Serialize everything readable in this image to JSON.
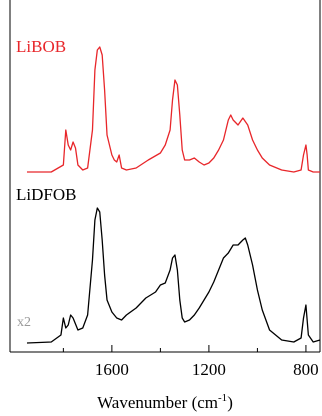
{
  "chart_data": {
    "type": "line",
    "xlabel": {
      "text": "Wavenumber (cm",
      "sup": "-1",
      "end": ")"
    },
    "xlim": [
      2020,
      742
    ],
    "xticks": [
      1600,
      1200,
      800
    ],
    "xminor": [
      1800,
      1400,
      1000
    ],
    "ylim": [
      0,
      352
    ],
    "annotations": [
      {
        "text": "x2",
        "color": "#999999"
      }
    ],
    "series": [
      {
        "name": "LiBOB",
        "color": "#e8262a",
        "x": [
          1950,
          1850,
          1800,
          1790,
          1780,
          1770,
          1760,
          1750,
          1740,
          1720,
          1700,
          1680,
          1670,
          1660,
          1650,
          1640,
          1630,
          1620,
          1600,
          1590,
          1580,
          1570,
          1560,
          1540,
          1500,
          1450,
          1400,
          1380,
          1360,
          1350,
          1340,
          1330,
          1320,
          1310,
          1300,
          1280,
          1260,
          1240,
          1220,
          1200,
          1180,
          1160,
          1140,
          1120,
          1110,
          1100,
          1080,
          1060,
          1040,
          1020,
          1000,
          980,
          950,
          900,
          850,
          820,
          810,
          800,
          795,
          790,
          770,
          742
        ],
        "values": [
          180,
          180,
          187,
          222,
          207,
          202,
          210,
          204,
          187,
          182,
          184,
          222,
          282,
          302,
          305,
          297,
          262,
          217,
          197,
          192,
          190,
          197,
          184,
          182,
          184,
          192,
          199,
          207,
          222,
          252,
          272,
          267,
          237,
          202,
          192,
          192,
          194,
          190,
          187,
          189,
          194,
          202,
          212,
          232,
          237,
          232,
          227,
          234,
          227,
          212,
          202,
          194,
          187,
          182,
          180,
          182,
          197,
          207,
          197,
          182,
          180,
          180
        ]
      },
      {
        "name": "LiDFOB",
        "color": "#000000",
        "x": [
          1950,
          1850,
          1810,
          1800,
          1790,
          1780,
          1770,
          1760,
          1740,
          1720,
          1700,
          1680,
          1670,
          1660,
          1650,
          1640,
          1630,
          1620,
          1600,
          1580,
          1560,
          1540,
          1500,
          1460,
          1420,
          1400,
          1380,
          1360,
          1350,
          1340,
          1330,
          1320,
          1310,
          1300,
          1280,
          1260,
          1240,
          1220,
          1200,
          1180,
          1160,
          1140,
          1120,
          1100,
          1080,
          1060,
          1050,
          1040,
          1020,
          1000,
          980,
          950,
          900,
          850,
          820,
          810,
          800,
          795,
          790,
          770,
          742
        ],
        "values": [
          9,
          10,
          17,
          34,
          24,
          27,
          37,
          34,
          22,
          24,
          37,
          92,
          132,
          144,
          140,
          112,
          77,
          52,
          40,
          34,
          32,
          37,
          44,
          54,
          60,
          67,
          69,
          82,
          94,
          97,
          82,
          52,
          34,
          30,
          32,
          37,
          44,
          52,
          60,
          70,
          82,
          94,
          99,
          107,
          107,
          112,
          114,
          107,
          87,
          62,
          42,
          22,
          12,
          10,
          14,
          34,
          47,
          32,
          17,
          10,
          12
        ]
      }
    ]
  }
}
